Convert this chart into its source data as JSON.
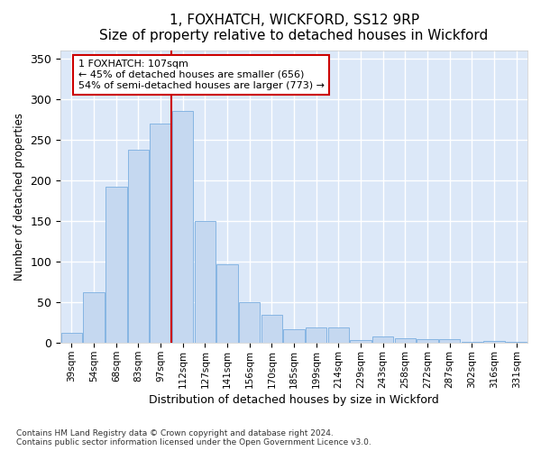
{
  "title": "1, FOXHATCH, WICKFORD, SS12 9RP",
  "subtitle": "Size of property relative to detached houses in Wickford",
  "xlabel": "Distribution of detached houses by size in Wickford",
  "ylabel": "Number of detached properties",
  "bar_color": "#c5d8f0",
  "bar_edge_color": "#7aaee0",
  "plot_bg": "#dce8f8",
  "fig_bg": "#ffffff",
  "categories": [
    "39sqm",
    "54sqm",
    "68sqm",
    "83sqm",
    "97sqm",
    "112sqm",
    "127sqm",
    "141sqm",
    "156sqm",
    "170sqm",
    "185sqm",
    "199sqm",
    "214sqm",
    "229sqm",
    "243sqm",
    "258sqm",
    "272sqm",
    "287sqm",
    "302sqm",
    "316sqm",
    "331sqm"
  ],
  "values": [
    13,
    62,
    192,
    237,
    270,
    285,
    150,
    97,
    50,
    35,
    17,
    19,
    19,
    4,
    8,
    6,
    5,
    5,
    1,
    2,
    1
  ],
  "vline_pos": 4.5,
  "vline_color": "#cc0000",
  "ann_label": "1 FOXHATCH: 107sqm",
  "ann_line1": "← 45% of detached houses are smaller (656)",
  "ann_line2": "54% of semi-detached houses are larger (773) →",
  "ann_box_fc": "#ffffff",
  "ann_box_ec": "#cc0000",
  "ylim": [
    0,
    360
  ],
  "yticks": [
    0,
    50,
    100,
    150,
    200,
    250,
    300,
    350
  ],
  "footer1": "Contains HM Land Registry data © Crown copyright and database right 2024.",
  "footer2": "Contains public sector information licensed under the Open Government Licence v3.0."
}
